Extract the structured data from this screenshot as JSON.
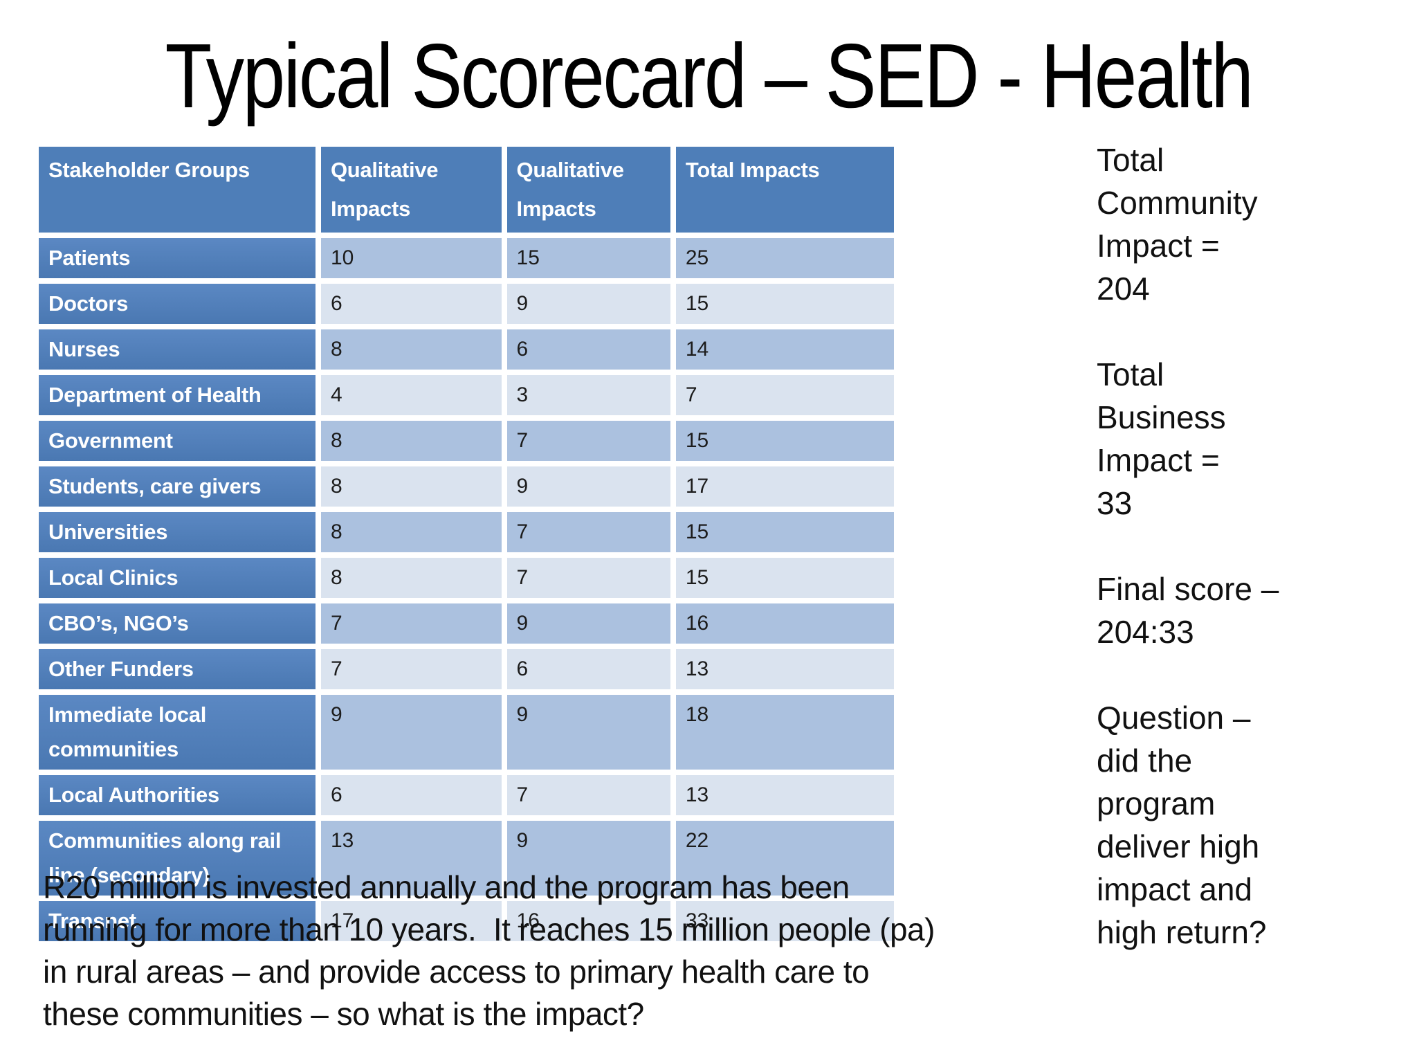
{
  "slide": {
    "title": "Typical Scorecard – SED - Health"
  },
  "colors": {
    "header_blue": "#4e7eb8",
    "label_blue": "#4a78b2",
    "row_medium": "#abc1df",
    "row_light": "#dae3ef",
    "background": "#ffffff",
    "text_dark": "#1c1c1c",
    "text_white": "#ffffff"
  },
  "table": {
    "headers": [
      {
        "label": "Stakeholder Groups"
      },
      {
        "label": "Qualitative\nImpacts"
      },
      {
        "label": "Qualitative\nImpacts"
      },
      {
        "label": "Total Impacts"
      }
    ],
    "rows": [
      {
        "label": "Patients",
        "values": [
          "10",
          "15",
          "25"
        ]
      },
      {
        "label": "Doctors",
        "values": [
          "6",
          "9",
          "15"
        ]
      },
      {
        "label": "Nurses",
        "values": [
          "8",
          "6",
          "14"
        ]
      },
      {
        "label": "Department of Health",
        "values": [
          "4",
          "3",
          "7"
        ]
      },
      {
        "label": "Government",
        "values": [
          "8",
          "7",
          "15"
        ]
      },
      {
        "label": "Students, care givers",
        "values": [
          "8",
          "9",
          "17"
        ]
      },
      {
        "label": "Universities",
        "values": [
          "8",
          "7",
          "15"
        ]
      },
      {
        "label": "Local Clinics",
        "values": [
          "8",
          "7",
          "15"
        ]
      },
      {
        "label": "CBO’s, NGO’s",
        "values": [
          "7",
          "9",
          "16"
        ]
      },
      {
        "label": "Other Funders",
        "values": [
          "7",
          "6",
          "13"
        ]
      },
      {
        "label": "Immediate local\ncommunities",
        "values": [
          "9",
          "9",
          "18"
        ]
      },
      {
        "label": "Local Authorities",
        "values": [
          "6",
          "7",
          "13"
        ]
      },
      {
        "label": "Communities along rail\nline (secondary)",
        "values": [
          "13",
          "9",
          "22"
        ]
      },
      {
        "label": "Transnet",
        "values": [
          "17",
          "16",
          "33"
        ]
      }
    ]
  },
  "side_panel": {
    "blocks": [
      "Total\nCommunity\nImpact =\n204",
      "Total\nBusiness\nImpact =\n33",
      "Final score –\n204:33",
      "Question –\ndid the\nprogram\ndeliver high\nimpact and\nhigh return?"
    ]
  },
  "bottom_paragraph": "R20 million is invested annually and the program has been\nrunning for more than 10 years.  It reaches 15 million people (pa)\nin rural areas – and provide access to primary health care to\nthese communities – so what is the impact?"
}
